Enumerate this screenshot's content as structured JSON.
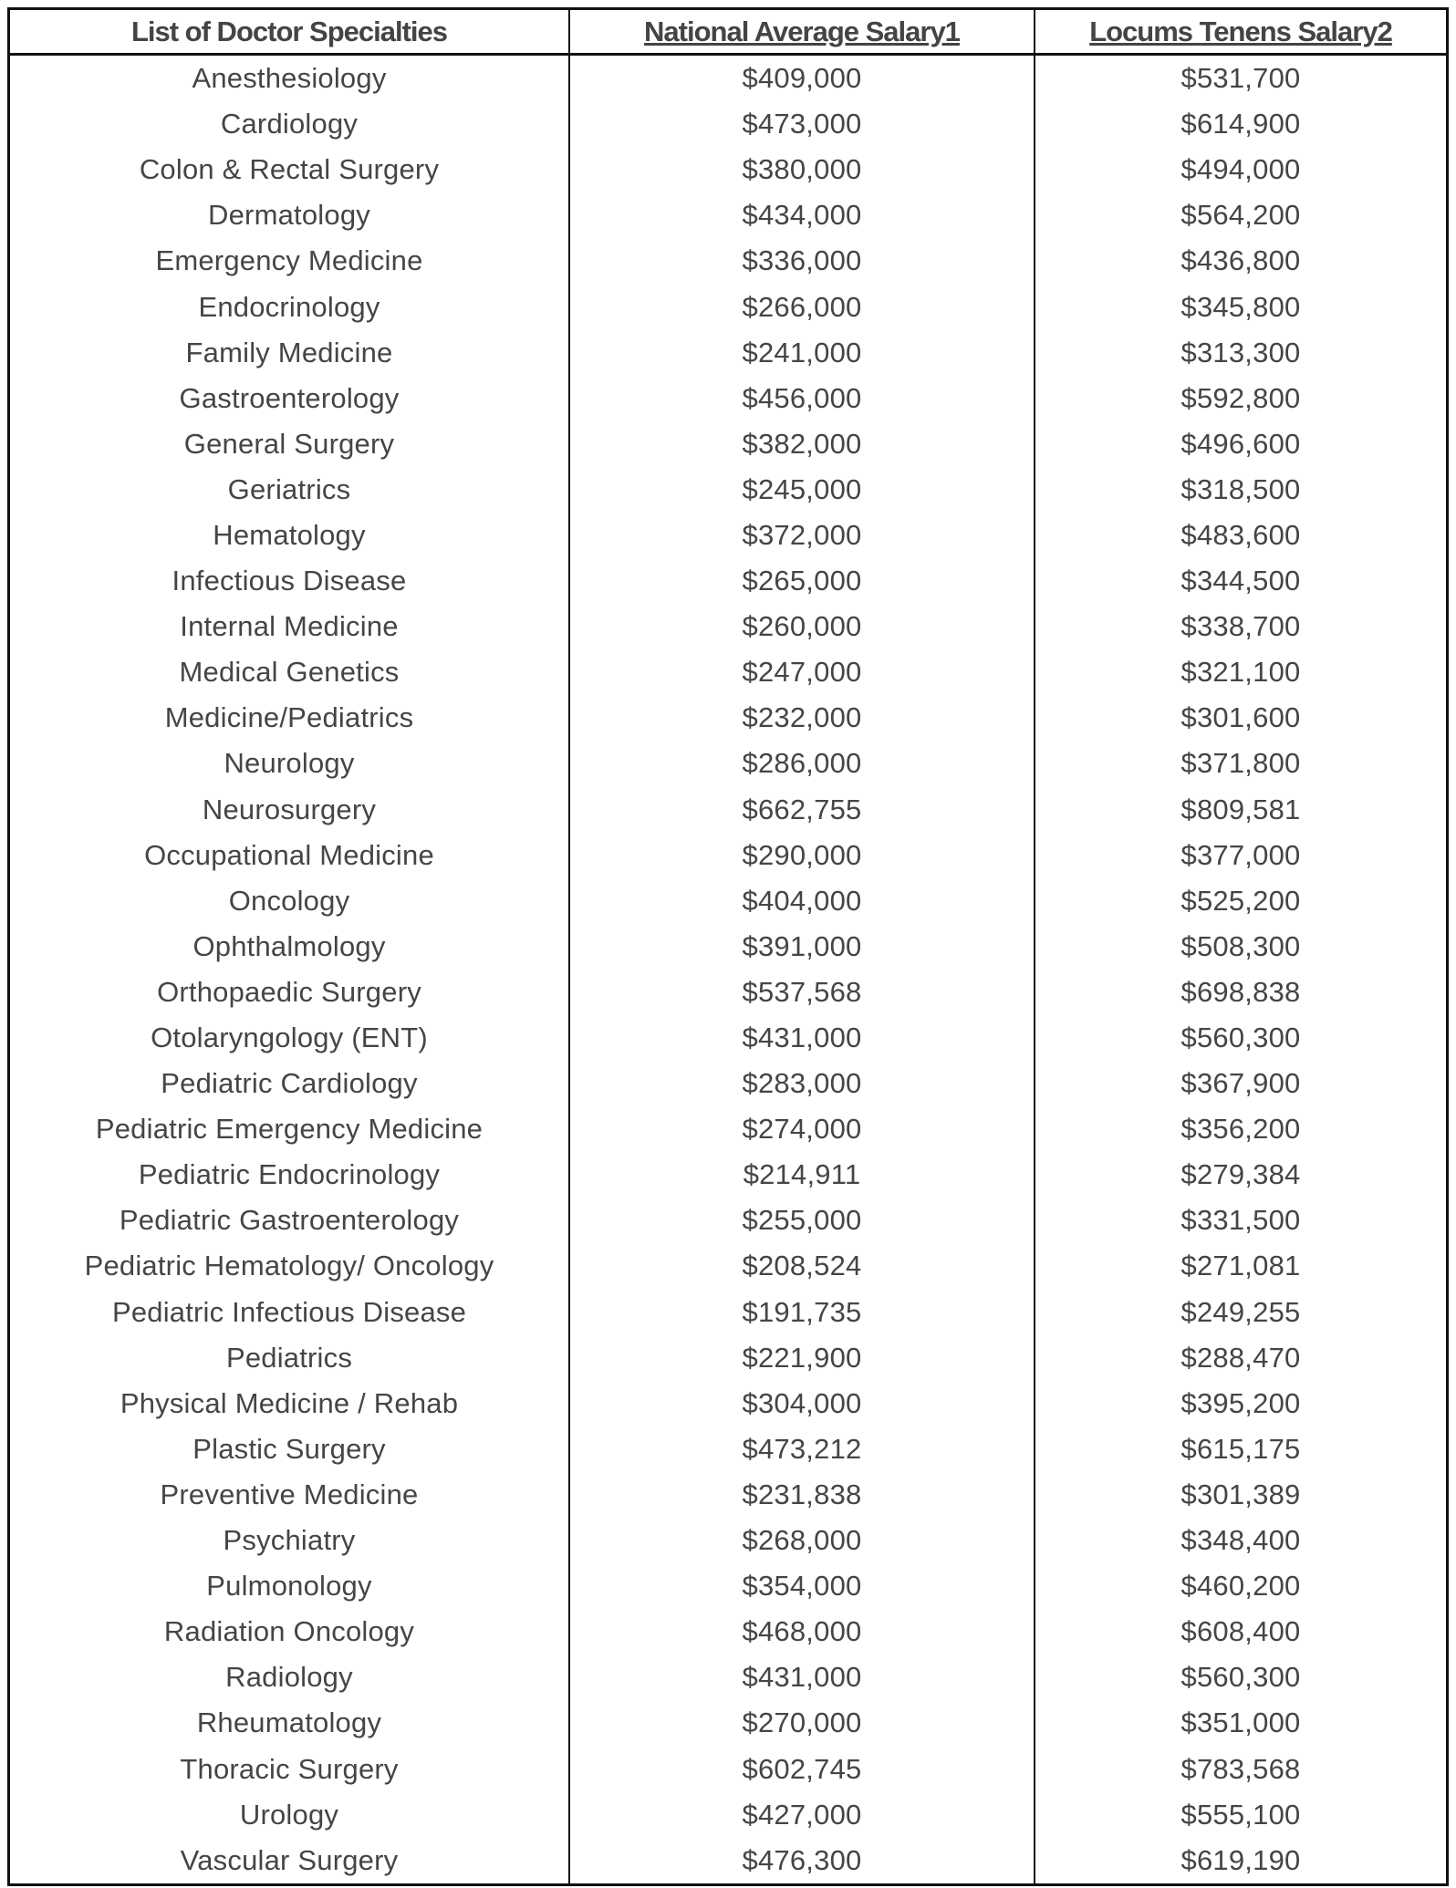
{
  "headers": [
    "List of Doctor Specialties",
    "National Average Salary1",
    "Locums Tenens Salary2"
  ],
  "rows": [
    [
      "Anesthesiology",
      "$409,000",
      "$531,700"
    ],
    [
      "Cardiology",
      "$473,000",
      "$614,900"
    ],
    [
      "Colon & Rectal Surgery",
      "$380,000",
      "$494,000"
    ],
    [
      "Dermatology",
      "$434,000",
      "$564,200"
    ],
    [
      "Emergency Medicine",
      "$336,000",
      "$436,800"
    ],
    [
      "Endocrinology",
      "$266,000",
      "$345,800"
    ],
    [
      "Family Medicine",
      "$241,000",
      "$313,300"
    ],
    [
      "Gastroenterology",
      "$456,000",
      "$592,800"
    ],
    [
      "General Surgery",
      "$382,000",
      "$496,600"
    ],
    [
      "Geriatrics",
      "$245,000",
      "$318,500"
    ],
    [
      "Hematology",
      "$372,000",
      "$483,600"
    ],
    [
      "Infectious Disease",
      "$265,000",
      "$344,500"
    ],
    [
      "Internal Medicine",
      "$260,000",
      "$338,700"
    ],
    [
      "Medical Genetics",
      "$247,000",
      "$321,100"
    ],
    [
      "Medicine/Pediatrics",
      "$232,000",
      "$301,600"
    ],
    [
      "Neurology",
      "$286,000",
      "$371,800"
    ],
    [
      "Neurosurgery",
      "$662,755",
      "$809,581"
    ],
    [
      "Occupational Medicine",
      "$290,000",
      "$377,000"
    ],
    [
      "Oncology",
      "$404,000",
      "$525,200"
    ],
    [
      "Ophthalmology",
      "$391,000",
      "$508,300"
    ],
    [
      "Orthopaedic Surgery",
      "$537,568",
      "$698,838"
    ],
    [
      "Otolaryngology (ENT)",
      "$431,000",
      "$560,300"
    ],
    [
      "Pediatric Cardiology",
      "$283,000",
      "$367,900"
    ],
    [
      "Pediatric Emergency Medicine",
      "$274,000",
      "$356,200"
    ],
    [
      "Pediatric Endocrinology",
      "$214,911",
      "$279,384"
    ],
    [
      "Pediatric Gastroenterology",
      "$255,000",
      "$331,500"
    ],
    [
      "Pediatric Hematology/ Oncology",
      "$208,524",
      "$271,081"
    ],
    [
      "Pediatric Infectious Disease",
      "$191,735",
      "$249,255"
    ],
    [
      "Pediatrics",
      "$221,900",
      "$288,470"
    ],
    [
      "Physical Medicine / Rehab",
      "$304,000",
      "$395,200"
    ],
    [
      "Plastic Surgery",
      "$473,212",
      "$615,175"
    ],
    [
      "Preventive Medicine",
      "$231,838",
      "$301,389"
    ],
    [
      "Psychiatry",
      "$268,000",
      "$348,400"
    ],
    [
      "Pulmonology",
      "$354,000",
      "$460,200"
    ],
    [
      "Radiation Oncology",
      "$468,000",
      "$608,400"
    ],
    [
      "Radiology",
      "$431,000",
      "$560,300"
    ],
    [
      "Rheumatology",
      "$270,000",
      "$351,000"
    ],
    [
      "Thoracic Surgery",
      "$602,745",
      "$783,568"
    ],
    [
      "Urology",
      "$427,000",
      "$555,100"
    ],
    [
      "Vascular Surgery",
      "$476,300",
      "$619,190"
    ]
  ]
}
